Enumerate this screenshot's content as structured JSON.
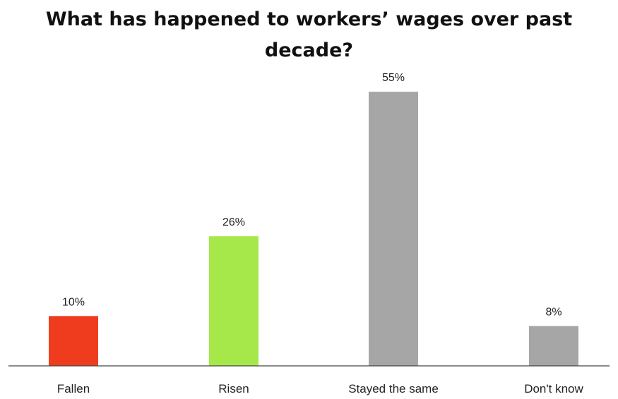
{
  "chart_data": {
    "type": "bar",
    "title": "What has happened to workers’ wages over past decade?",
    "categories": [
      "Fallen",
      "Risen",
      "Stayed the same",
      "Don't know"
    ],
    "values": [
      10,
      26,
      55,
      8
    ],
    "value_labels": [
      "10%",
      "26%",
      "55%",
      "8%"
    ],
    "colors": [
      "#f03c1e",
      "#a6e84a",
      "#a6a6a6",
      "#a6a6a6"
    ],
    "ylim": [
      0,
      60
    ],
    "grid": false,
    "legend": "none"
  }
}
